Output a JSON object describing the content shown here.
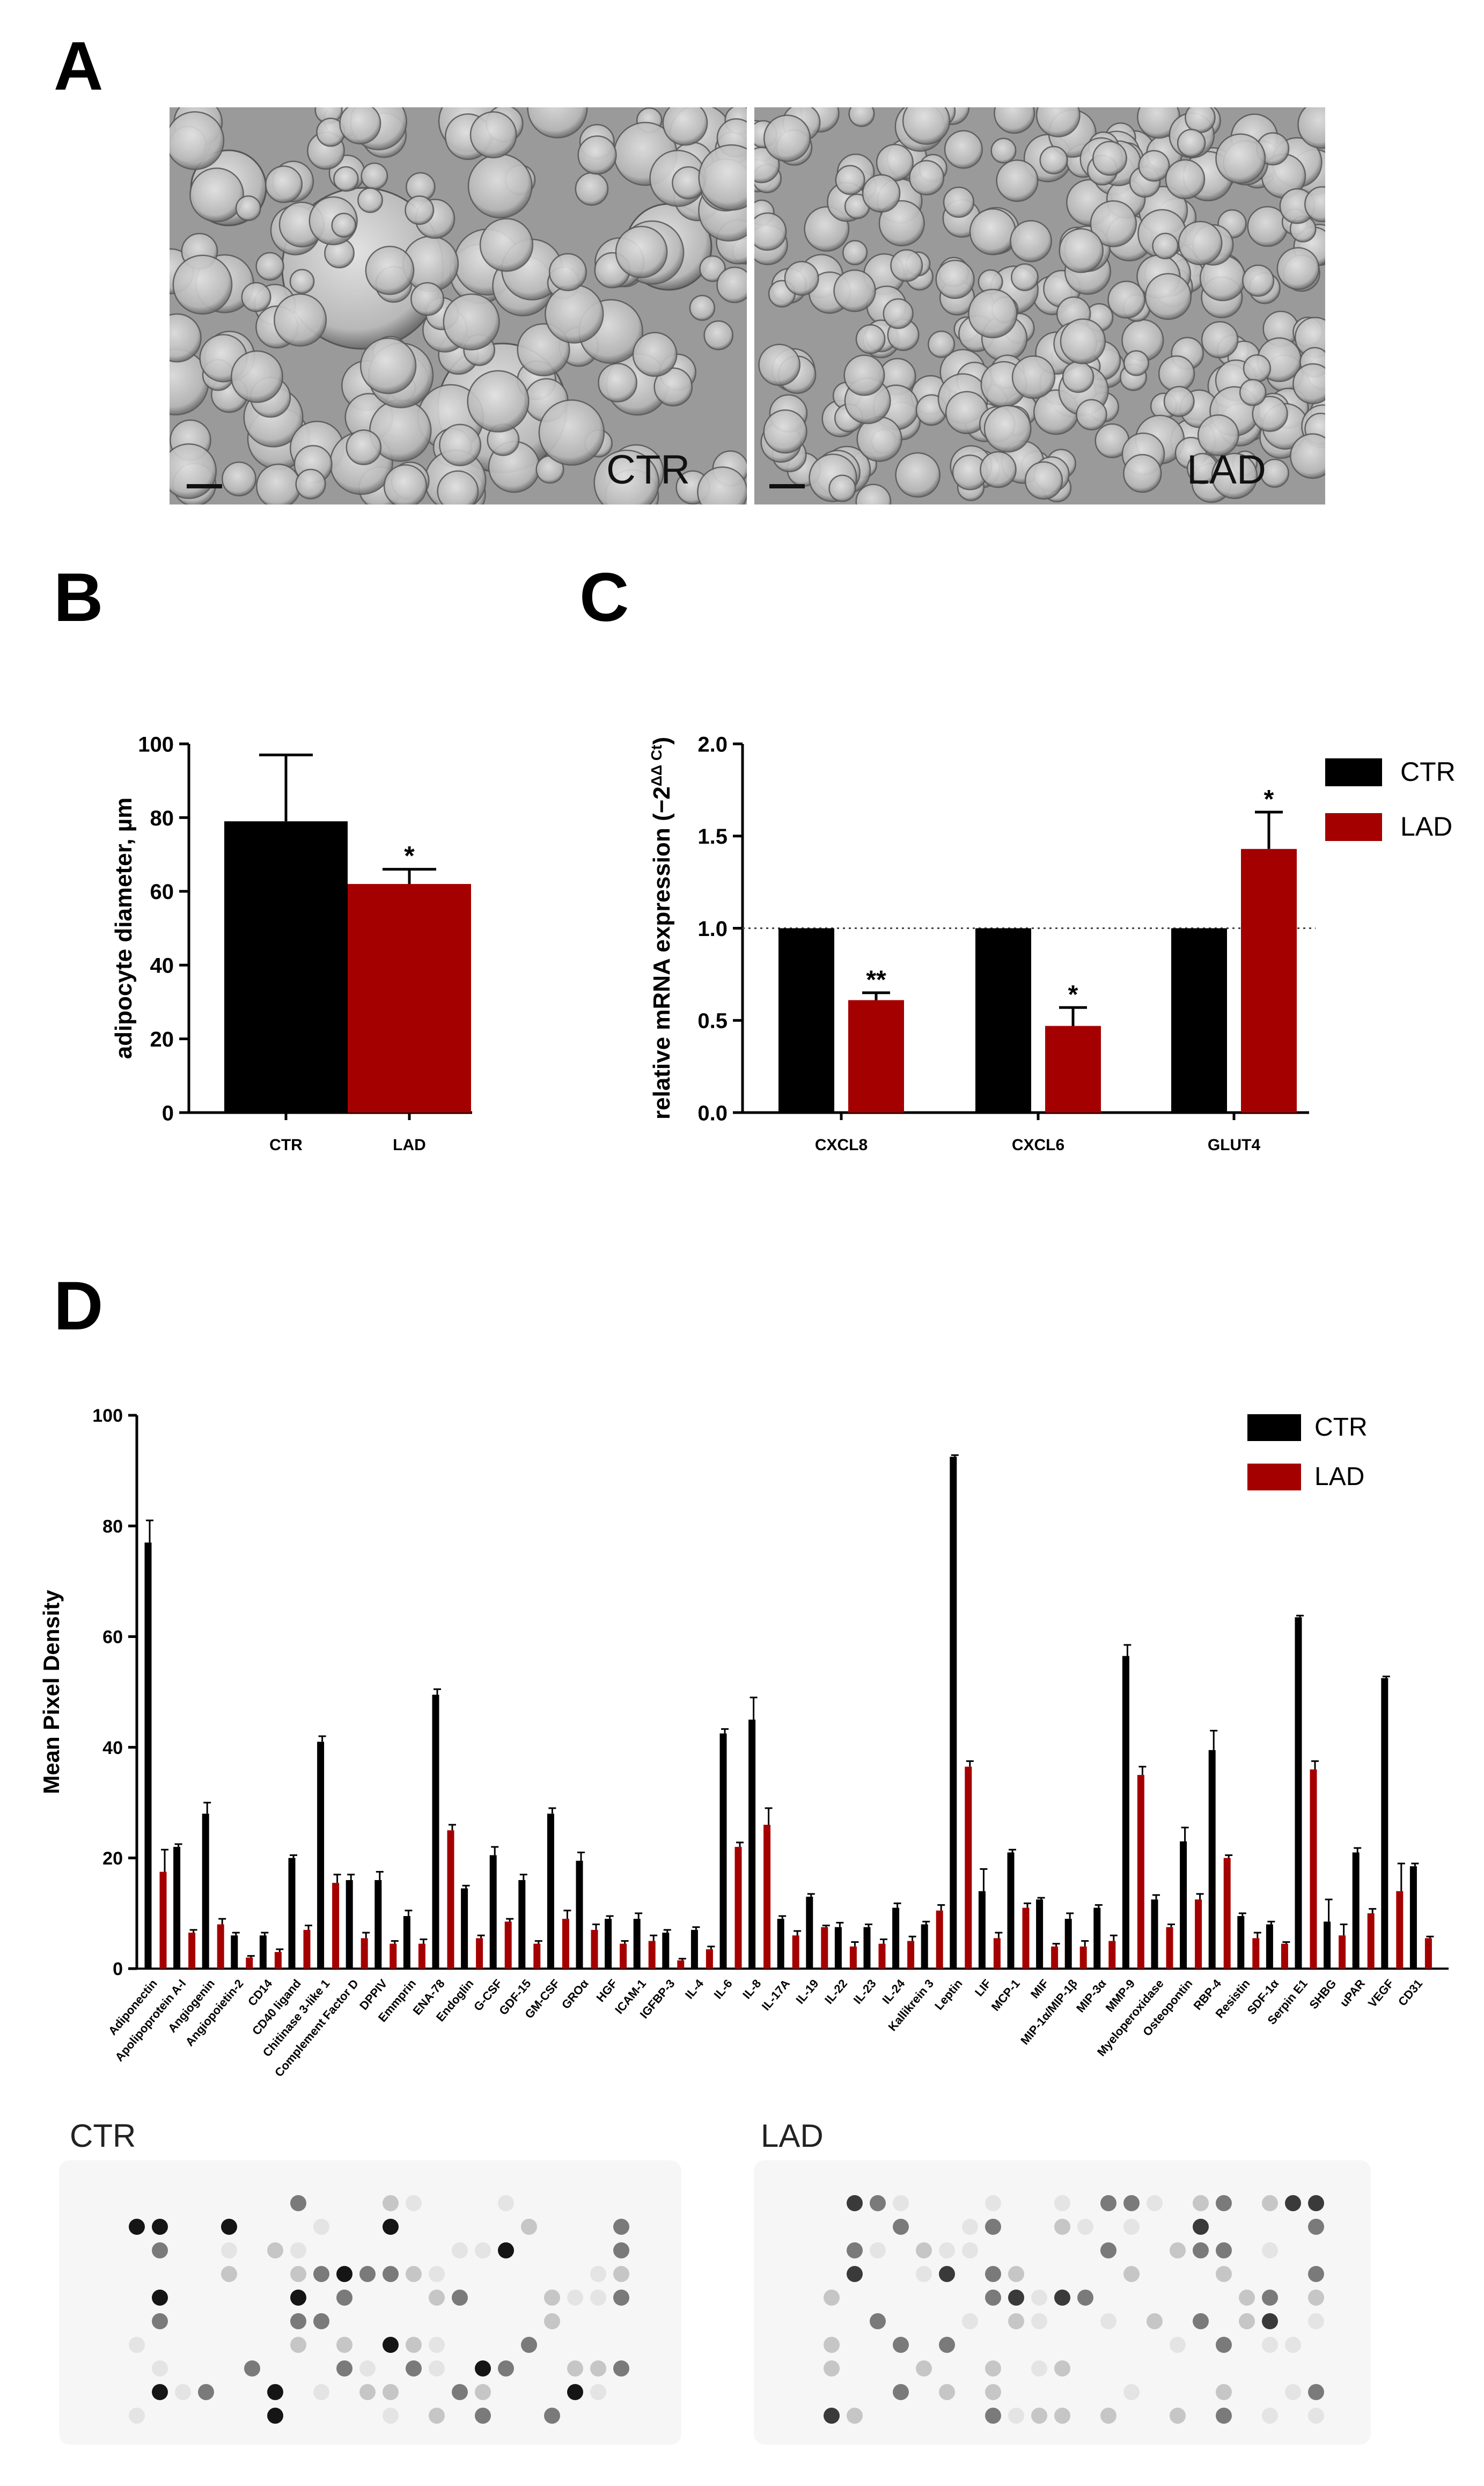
{
  "panel_labels": {
    "a": "A",
    "b": "B",
    "c": "C",
    "d": "D"
  },
  "panel_a": {
    "images": [
      {
        "label": "CTR",
        "content": "micrograph of adipocytes, larger cells"
      },
      {
        "label": "LAD",
        "content": "micrograph of adipocytes, smaller cells"
      }
    ]
  },
  "colors": {
    "ctr": "#000000",
    "lad": "#a50000"
  },
  "chart_data": [
    {
      "id": "B",
      "type": "bar",
      "ylabel": "adipocyte diameter, µm",
      "categories": [
        "CTR",
        "LAD"
      ],
      "values": [
        79,
        62
      ],
      "errors": [
        18,
        4
      ],
      "annotations": [
        "",
        "*"
      ],
      "ylim": [
        0,
        100
      ],
      "yticks": [
        0,
        20,
        40,
        60,
        80,
        100
      ],
      "ytick_labels": [
        "0",
        "20",
        "40",
        "60",
        "80",
        "100"
      ]
    },
    {
      "id": "C",
      "type": "bar",
      "ylabel": "relative mRNA expression (−2",
      "ylabel_sup": "ΔΔ Ct",
      "ylabel_end": ")",
      "categories": [
        "CXCL8",
        "CXCL6",
        "GLUT4"
      ],
      "series": [
        {
          "name": "CTR",
          "values": [
            1.0,
            1.0,
            1.0
          ],
          "errors": [
            0,
            0,
            0
          ],
          "annotations": [
            "",
            "",
            ""
          ]
        },
        {
          "name": "LAD",
          "values": [
            0.61,
            0.47,
            1.43
          ],
          "errors": [
            0.04,
            0.1,
            0.2
          ],
          "annotations": [
            "**",
            "*",
            "*"
          ]
        }
      ],
      "reference_line": 1.0,
      "ylim": [
        0,
        2.0
      ],
      "yticks": [
        0,
        0.5,
        1.0,
        1.5,
        2.0
      ],
      "ytick_labels": [
        "0.0",
        "0.5",
        "1.0",
        "1.5",
        "2.0"
      ],
      "legend": [
        "CTR",
        "LAD"
      ],
      "legend_position": "top-right"
    },
    {
      "id": "D",
      "type": "bar",
      "ylabel": "Mean Pixel Density",
      "categories": [
        "Adiponectin",
        "Apolipoprotein A-I",
        "Angiogenin",
        "Angiopoietin-2",
        "CD14",
        "CD40 ligand",
        "Chitinase 3-like 1",
        "Complement Factor D",
        "DPPIV",
        "Emmprin",
        "ENA-78",
        "Endoglin",
        "G-CSF",
        "GDF-15",
        "GM-CSF",
        "GROα",
        "HGF",
        "ICAM-1",
        "IGFBP-3",
        "IL-4",
        "IL-6",
        "IL-8",
        "IL-17A",
        "IL-19",
        "IL-22",
        "IL-23",
        "IL-24",
        "Kallikrein 3",
        "Leptin",
        "LIF",
        "MCP-1",
        "MIF",
        "MIP-1α/MIP-1β",
        "MIP-3α",
        "MMP-9",
        "Myeloperoxidase",
        "Osteopontin",
        "RBP-4",
        "Resistin",
        "SDF-1α",
        "Serpin E1",
        "SHBG",
        "uPAR",
        "VEGF",
        "CD31"
      ],
      "series": [
        {
          "name": "CTR",
          "values": [
            77,
            22,
            28,
            6,
            6,
            20,
            41,
            16,
            16,
            9.5,
            49.5,
            14.5,
            20.5,
            16,
            28,
            19.5,
            9,
            9,
            6.5,
            7,
            42.5,
            45,
            9,
            13,
            7.5,
            7.5,
            11,
            8,
            92.5,
            14,
            21,
            12.5,
            9,
            11,
            56.5,
            12.5,
            23,
            39.5,
            9.5,
            8,
            63.5,
            8.5,
            21,
            52.5,
            18.5
          ],
          "errors": [
            4,
            0.5,
            2,
            0.5,
            0.5,
            0.5,
            1,
            1,
            1.5,
            1,
            1,
            0.5,
            1.5,
            1,
            1,
            1.5,
            0.5,
            1,
            0.5,
            0.5,
            0.8,
            4,
            0.5,
            0.5,
            0.8,
            0.5,
            0.8,
            0.5,
            0.3,
            4,
            0.5,
            0.3,
            1,
            0.5,
            2,
            0.8,
            2.5,
            3.5,
            0.5,
            0.5,
            0.3,
            4,
            0.8,
            0.3,
            0.5
          ]
        },
        {
          "name": "LAD",
          "values": [
            17.5,
            6.5,
            8,
            2,
            3,
            7,
            15.5,
            5.5,
            4.5,
            4.5,
            25,
            5.5,
            8.5,
            4.5,
            9,
            7,
            4.5,
            5,
            1.5,
            3.5,
            22,
            26,
            6,
            7.5,
            4,
            4.5,
            5,
            10.5,
            36.5,
            5.5,
            11,
            4,
            4,
            5,
            35,
            7.5,
            12.5,
            20,
            5.5,
            4.5,
            36,
            6,
            10,
            14,
            5.5
          ],
          "errors": [
            4,
            0.5,
            1,
            0.3,
            0.5,
            0.8,
            1.5,
            1,
            0.5,
            0.8,
            1,
            0.5,
            0.5,
            0.5,
            1.5,
            1,
            0.5,
            1,
            0.3,
            0.5,
            0.8,
            3,
            0.8,
            0.3,
            0.8,
            0.8,
            0.8,
            1,
            1,
            1,
            0.8,
            0.5,
            1,
            1,
            1.5,
            0.5,
            1,
            0.5,
            1,
            0.3,
            1.5,
            2,
            0.8,
            5,
            0.3
          ]
        }
      ],
      "ylim": [
        0,
        100
      ],
      "yticks": [
        0,
        20,
        40,
        60,
        80,
        100
      ],
      "ytick_labels": [
        "0",
        "20",
        "40",
        "60",
        "80",
        "100"
      ],
      "legend": [
        "CTR",
        "LAD"
      ],
      "legend_position": "top-right"
    }
  ],
  "blots": [
    {
      "label": "CTR",
      "content": "cytokine array membrane, CTR"
    },
    {
      "label": "LAD",
      "content": "cytokine array membrane, LAD"
    }
  ]
}
